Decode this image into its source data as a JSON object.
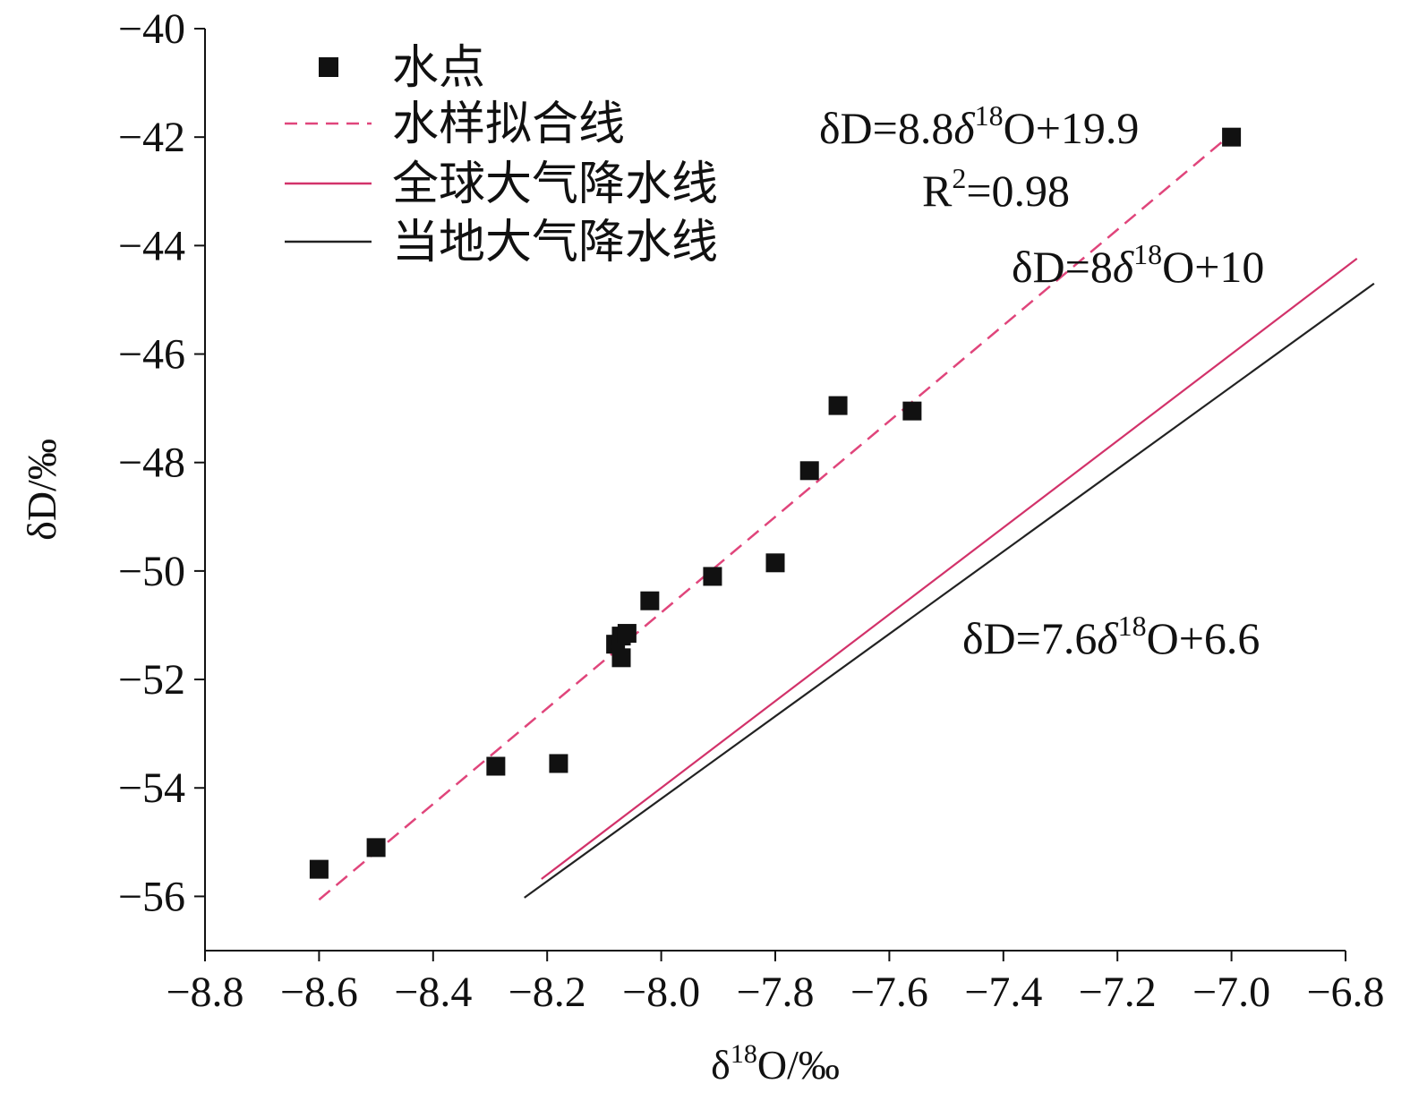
{
  "chart_data": {
    "type": "scatter",
    "xlabel_base": "δ",
    "xlabel_sup": "18",
    "xlabel_tail": "O/‰",
    "ylabel": "δD/‰",
    "xlim": [
      -8.8,
      -6.8
    ],
    "ylim": [
      -57,
      -40
    ],
    "xticks": [
      -8.8,
      -8.6,
      -8.4,
      -8.2,
      -8.0,
      -7.8,
      -7.6,
      -7.4,
      -7.2,
      -7.0,
      -6.8
    ],
    "xtick_labels": [
      "−8.8",
      "−8.6",
      "−8.4",
      "−8.2",
      "−8.0",
      "−7.8",
      "−7.6",
      "−7.4",
      "−7.2",
      "−7.0",
      "−6.8"
    ],
    "yticks": [
      -40,
      -42,
      -44,
      -46,
      -48,
      -50,
      -52,
      -54,
      -56
    ],
    "ytick_labels": [
      "−40",
      "−42",
      "−44",
      "−46",
      "−48",
      "−50",
      "−52",
      "−54",
      "−56"
    ],
    "points": {
      "name": "水点",
      "color": "#111111",
      "x": [
        -8.6,
        -8.5,
        -8.29,
        -8.18,
        -8.08,
        -8.07,
        -8.07,
        -8.06,
        -8.02,
        -7.91,
        -7.8,
        -7.74,
        -7.69,
        -7.56,
        -7.0
      ],
      "y": [
        -55.5,
        -55.1,
        -53.6,
        -53.55,
        -51.35,
        -51.2,
        -51.6,
        -51.15,
        -50.55,
        -50.1,
        -49.85,
        -48.15,
        -46.95,
        -47.05,
        -42.0
      ]
    },
    "lines": [
      {
        "name": "水样拟合线",
        "style": "dashed",
        "color": "#e0457b",
        "x_range": [
          -8.6,
          -7.0
        ]
      },
      {
        "name": "全球大气降水线",
        "style": "solid",
        "color": "#d2326a",
        "x_range": [
          -8.21,
          -6.78
        ]
      },
      {
        "name": "当地大气降水线",
        "style": "solid",
        "color": "#222222",
        "x_range": [
          -8.24,
          -6.75
        ]
      }
    ],
    "annotations": [
      {
        "parts": [
          [
            "δD=8.8",
            "n"
          ],
          [
            "δ",
            "i"
          ],
          [
            "18",
            "s"
          ],
          [
            "O+19.9",
            "n"
          ]
        ]
      },
      {
        "parts": [
          [
            "R",
            "n"
          ],
          [
            "2",
            "s"
          ],
          [
            "=0.98",
            "n"
          ]
        ]
      },
      {
        "parts": [
          [
            "δD=8",
            "n"
          ],
          [
            "δ",
            "i"
          ],
          [
            "18",
            "s"
          ],
          [
            "O+10",
            "n"
          ]
        ]
      },
      {
        "parts": [
          [
            "δD=7.6",
            "n"
          ],
          [
            "δ",
            "i"
          ],
          [
            "18",
            "s"
          ],
          [
            "O+6.6",
            "n"
          ]
        ]
      }
    ],
    "legend_position": "top-left",
    "grid": false
  }
}
